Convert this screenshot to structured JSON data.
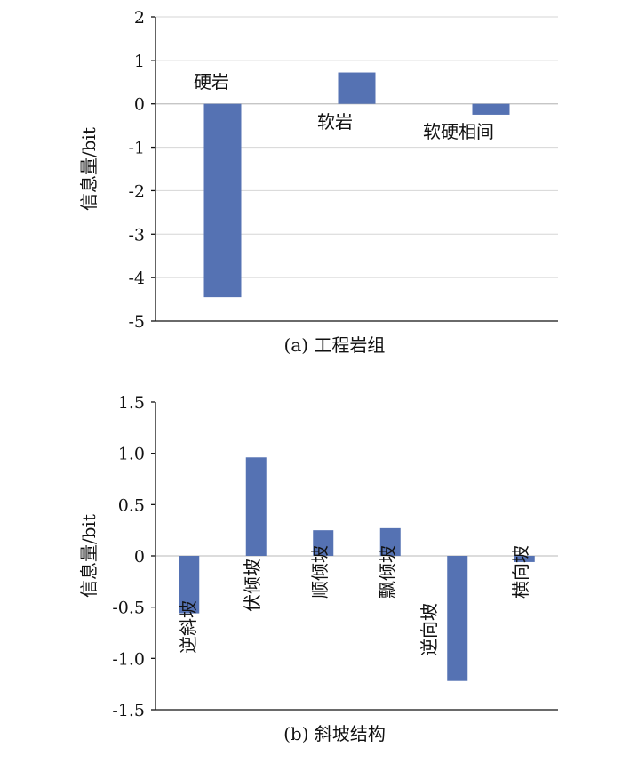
{
  "chart_data": [
    {
      "type": "bar",
      "caption": "(a) 工程岩组",
      "ylabel": "信息量/bit",
      "categories": [
        "硬岩",
        "软岩",
        "软硬相间"
      ],
      "values": [
        -4.45,
        0.72,
        -0.25
      ],
      "ylim": [
        -5,
        2
      ],
      "yticks": [
        "2",
        "1",
        "0",
        "-1",
        "-2",
        "-3",
        "-4",
        "-5"
      ],
      "ytick_values": [
        2,
        1,
        0,
        -1,
        -2,
        -3,
        -4,
        -5
      ],
      "bar_color": "#5572b3",
      "grid": true
    },
    {
      "type": "bar",
      "caption": "(b) 斜坡结构",
      "ylabel": "信息量/bit",
      "categories": [
        "逆斜坡",
        "伏倾坡",
        "顺倾坡",
        "飘倾坡",
        "逆向坡",
        "横向坡"
      ],
      "values": [
        -0.56,
        0.96,
        0.25,
        0.27,
        -1.22,
        -0.06
      ],
      "ylim": [
        -1.5,
        1.5
      ],
      "yticks": [
        "1.5",
        "1.0",
        "0.5",
        "0",
        "-0.5",
        "-1.0",
        "-1.5"
      ],
      "ytick_values": [
        1.5,
        1.0,
        0.5,
        0,
        -0.5,
        -1.0,
        -1.5
      ],
      "bar_color": "#5572b3",
      "grid": false
    }
  ]
}
